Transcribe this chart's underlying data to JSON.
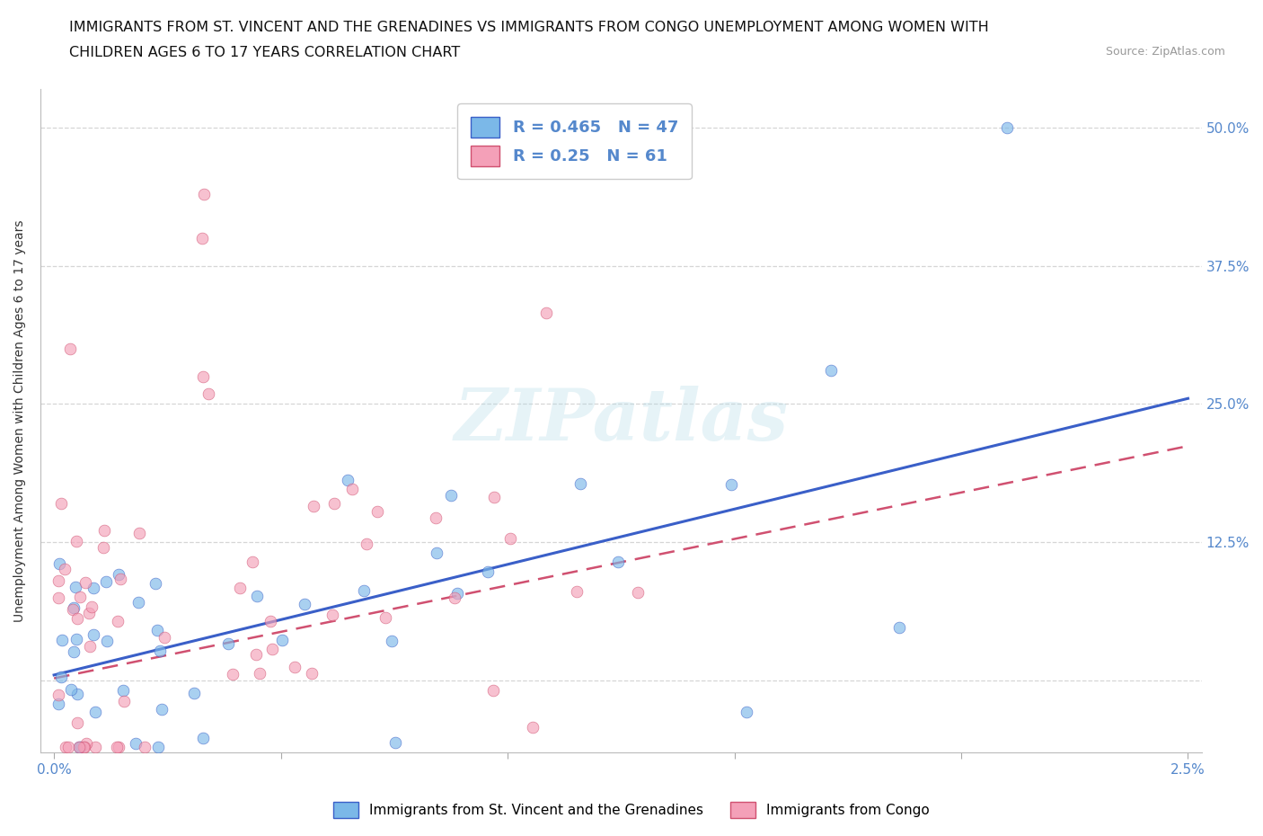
{
  "title_line1": "IMMIGRANTS FROM ST. VINCENT AND THE GRENADINES VS IMMIGRANTS FROM CONGO UNEMPLOYMENT AMONG WOMEN WITH",
  "title_line2": "CHILDREN AGES 6 TO 17 YEARS CORRELATION CHART",
  "source": "Source: ZipAtlas.com",
  "ylabel": "Unemployment Among Women with Children Ages 6 to 17 years",
  "color_vincent": "#7bb8e8",
  "color_congo": "#f4a0b8",
  "line_color_vincent": "#3a5fc8",
  "line_color_congo": "#d05070",
  "R_vincent": 0.465,
  "N_vincent": 47,
  "R_congo": 0.25,
  "N_congo": 61,
  "legend_label_vincent": "Immigrants from St. Vincent and the Grenadines",
  "legend_label_congo": "Immigrants from Congo",
  "watermark": "ZIPatlas",
  "background_color": "#ffffff",
  "grid_color": "#cccccc",
  "scatter_alpha": 0.65,
  "scatter_size": 85,
  "tick_color": "#5588cc",
  "label_color": "#333333",
  "reg_line_intercept_v": 0.01,
  "reg_line_slope_v": 9.5,
  "reg_line_intercept_c": 0.005,
  "reg_line_slope_c": 7.5
}
